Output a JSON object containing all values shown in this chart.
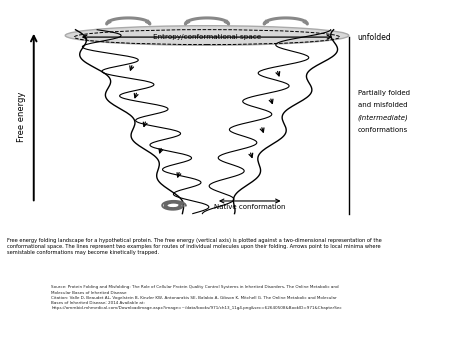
{
  "bg_color": "#ffffff",
  "ylabel": "Free energy",
  "caption": "Free energy folding landscape for a hypothetical protein. The free energy (vertical axis) is plotted against a two-dimensional representation of the\nconformational space. The lines represent two examples for routes of individual molecules upon their folding. Arrows point to local minima where\nsemistable conformations may become kinetically trapped.",
  "label_entropy": "Entropy/conformational space",
  "label_unfolded": "unfolded",
  "label_native": "Native conformation",
  "label_partial_1": "Partially folded",
  "label_partial_2": "and misfolded",
  "label_partial_3": "(intermediate)",
  "label_partial_4": "conformations",
  "mcgraw_red": "#cc0000",
  "source_line1": "Source: Protein Folding and Misfolding: The Role of Cellular Protein Quality Control Systems in Inherited Disorders, The Online Metabolic and",
  "source_line2": "Molecular Bases of Inherited Disease",
  "cite_line1": "Citation: Valle D, Beaudet AL, Vogelstein B, Kinzler KW, Antonarakis SE, Balabio A, Gibson K, Mitchell G. The Online Metabolic and Molecular",
  "cite_line2": "Bases of Inherited Disease; 2014 Available at:",
  "cite_line3": "https://ommbid.mhmedical.com/Downloadimage.aspx?image=~/data/books/971/ch13_11g4.png&sec=62640508&BookID=971&ChapterSec"
}
